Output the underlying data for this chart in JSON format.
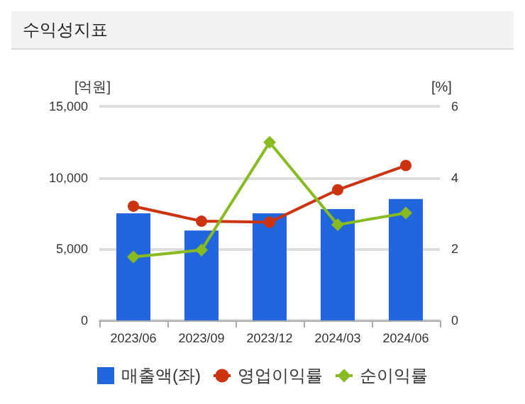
{
  "chart_data": {
    "type": "bar",
    "title": "수익성지표",
    "ylabel": "[억원]",
    "y2label": "[%]",
    "categories": [
      "2023/06",
      "2023/09",
      "2023/12",
      "2024/03",
      "2024/06"
    ],
    "series": [
      {
        "name": "매출액(좌)",
        "color": "#2266dd",
        "values": [
          7500,
          6300,
          7500,
          7800,
          8500
        ]
      },
      {
        "name": "영업이익률",
        "type": "line",
        "axis": "y2",
        "color": "#cc3311",
        "marker": "circle",
        "values": [
          3.2,
          2.78,
          2.75,
          3.66,
          4.34
        ]
      },
      {
        "name": "순이익률",
        "type": "line",
        "axis": "y2",
        "color": "#88bb22",
        "marker": "diamond",
        "values": [
          1.78,
          1.97,
          4.99,
          2.68,
          3.01
        ]
      }
    ],
    "ylim": [
      0,
      15000
    ],
    "yticks": [
      0,
      {
        "value": 5000,
        "label": "5,000"
      },
      {
        "value": 10000,
        "label": "10,000"
      },
      {
        "value": 15000,
        "label": "15,000"
      }
    ],
    "y2lim": [
      0,
      6
    ],
    "y2ticks": [
      0,
      2,
      4,
      6
    ],
    "grid": "y",
    "legend": "bottom"
  }
}
